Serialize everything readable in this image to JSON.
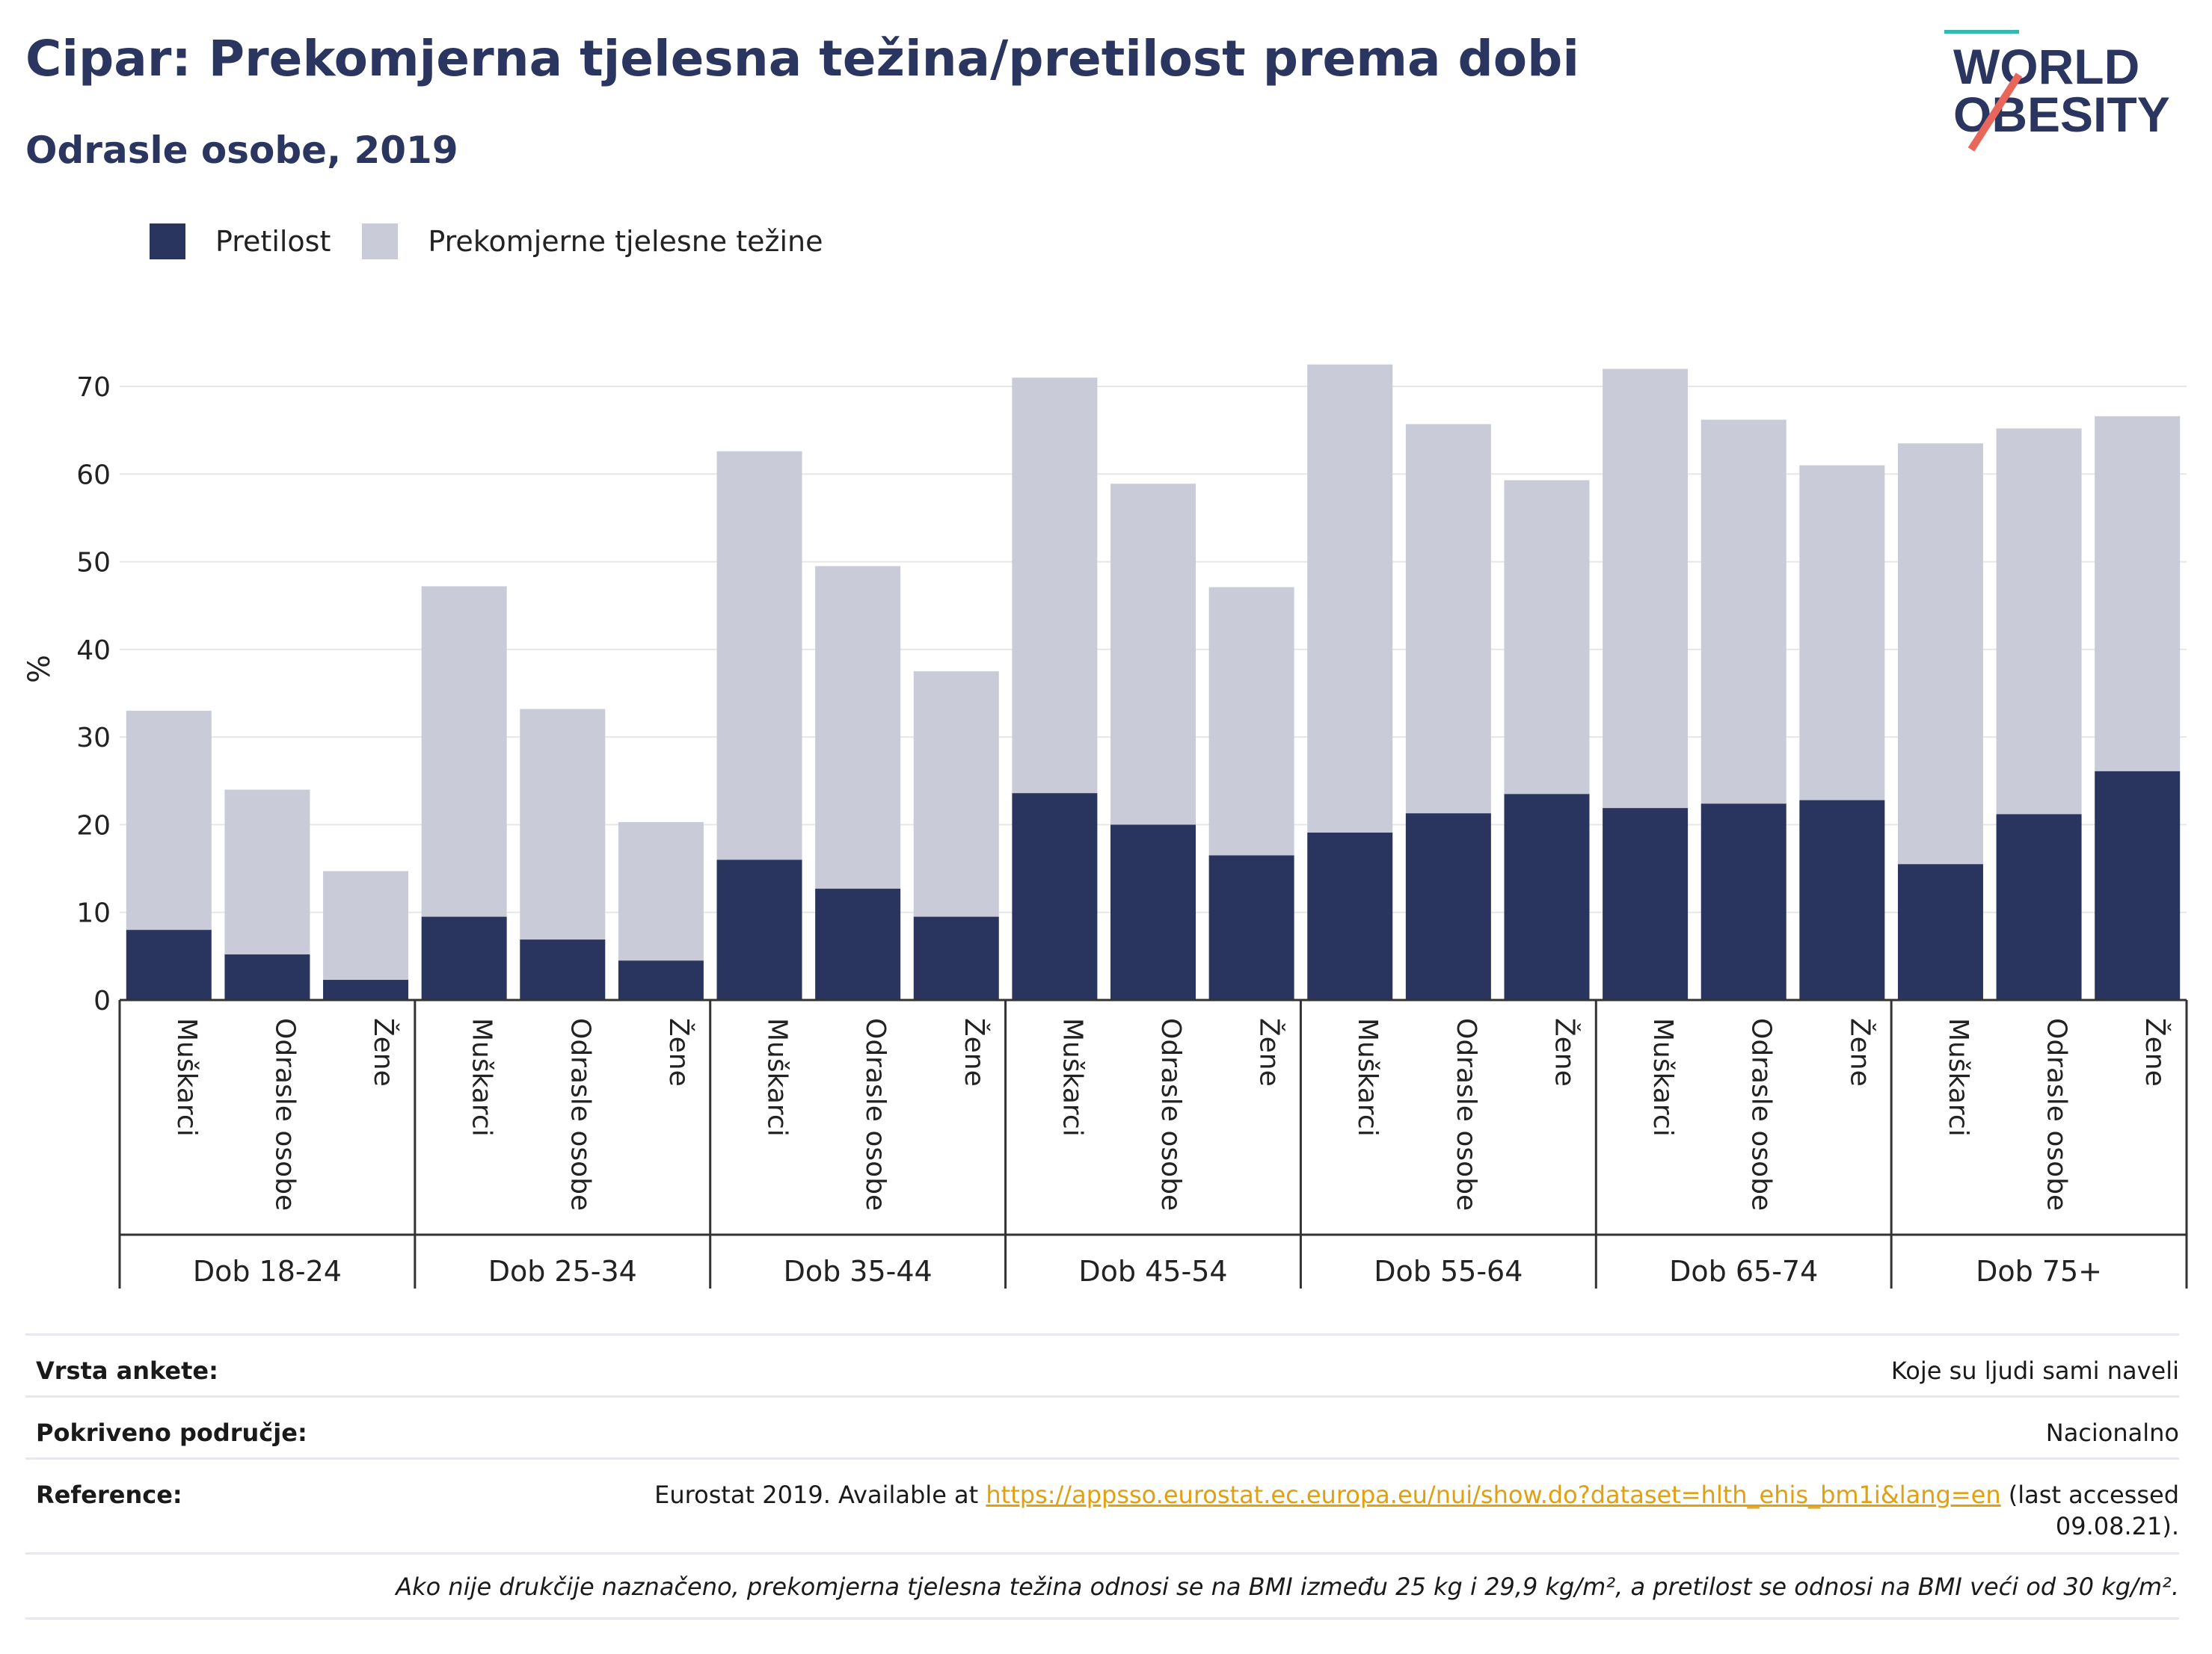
{
  "header": {
    "title": "Cipar: Prekomjerna tjelesna težina/pretilost prema dobi",
    "subtitle": "Odrasle osobe, 2019"
  },
  "logo": {
    "line1": "WORLD",
    "line2": "OBESITY",
    "text_color": "#2a3560",
    "slash_colors": [
      "#35b8b0",
      "#e8665a"
    ]
  },
  "legend": [
    {
      "label": "Pretilost",
      "color": "#29355f"
    },
    {
      "label": "Prekomjerne tjelesne težine",
      "color": "#c9ccd8"
    }
  ],
  "chart_data": {
    "type": "bar",
    "stacked": true,
    "ylabel": "%",
    "ylim": [
      0,
      75
    ],
    "yticks": [
      0,
      10,
      20,
      30,
      40,
      50,
      60,
      70
    ],
    "grid": true,
    "groups": [
      "Dob 18-24",
      "Dob 25-34",
      "Dob 35-44",
      "Dob 45-54",
      "Dob 55-64",
      "Dob 65-74",
      "Dob 75+"
    ],
    "categories": [
      "Muškarci",
      "Odrasle osobe",
      "Žene"
    ],
    "series": [
      {
        "name": "Pretilost",
        "color": "#29355f",
        "values": [
          [
            8.0,
            5.2,
            2.3
          ],
          [
            9.5,
            6.9,
            4.5
          ],
          [
            16.0,
            12.7,
            9.5
          ],
          [
            23.6,
            20.0,
            16.5
          ],
          [
            19.1,
            21.3,
            23.5
          ],
          [
            21.9,
            22.4,
            22.8
          ],
          [
            15.5,
            21.2,
            26.1
          ]
        ]
      },
      {
        "name": "Prekomjerne tjelesne težine",
        "color": "#c9ccd8",
        "values": [
          [
            25.0,
            18.8,
            12.4
          ],
          [
            37.7,
            26.3,
            15.8
          ],
          [
            46.6,
            36.8,
            28.0
          ],
          [
            47.4,
            38.9,
            30.6
          ],
          [
            53.4,
            44.4,
            35.8
          ],
          [
            50.1,
            43.8,
            38.2
          ],
          [
            48.0,
            44.0,
            40.5
          ]
        ]
      }
    ]
  },
  "meta": {
    "rows": [
      {
        "key": "Vrsta ankete:",
        "value": "Koje su ljudi sami naveli"
      },
      {
        "key": "Pokriveno područje:",
        "value": "Nacionalno"
      }
    ],
    "reference": {
      "key": "Reference:",
      "prefix": "Eurostat 2019. Available at ",
      "link": "https://appsso.eurostat.ec.europa.eu/nui/show.do?dataset=hlth_ehis_bm1i&lang=en",
      "suffix": " (last accessed",
      "line2": "09.08.21)."
    },
    "note": "Ako nije drukčije naznačeno, prekomjerna tjelesna težina odnosi se na BMI između 25 kg i 29,9 kg/m², a pretilost se odnosi na BMI veći od 30 kg/m²."
  }
}
